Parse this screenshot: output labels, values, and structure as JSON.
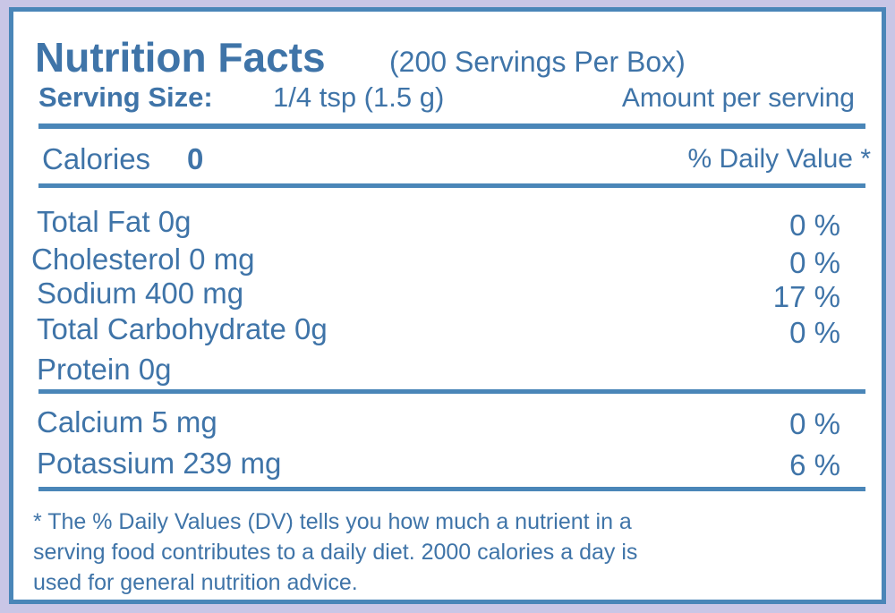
{
  "header": {
    "title": "Nutrition Facts",
    "servings": "(200 Servings Per Box)",
    "serving_size_label": "Serving Size:",
    "serving_size": "1/4 tsp (1.5 g)",
    "amount_per_serving": "Amount per serving"
  },
  "calories": {
    "label": "Calories",
    "value": "0",
    "dv_header": "% Daily Value *"
  },
  "nutrients": [
    {
      "name": "Total Fat  0g",
      "dv": "0 %"
    },
    {
      "name": "Cholesterol  0 mg",
      "dv": "0 %"
    },
    {
      "name": "Sodium 400 mg",
      "dv": "17 %"
    },
    {
      "name": "Total Carbohydrate  0g",
      "dv": "0 %"
    },
    {
      "name": "Protein 0g"
    }
  ],
  "minerals": [
    {
      "name": "Calcium 5 mg",
      "dv": "0 %"
    },
    {
      "name": "Potassium 239 mg",
      "dv": "6 %"
    }
  ],
  "footnote": [
    "* The % Daily Values (DV) tells you how much a nutrient in a",
    "serving food contributes to a daily diet. 2000 calories a day is",
    "used for general nutrition advice."
  ]
}
